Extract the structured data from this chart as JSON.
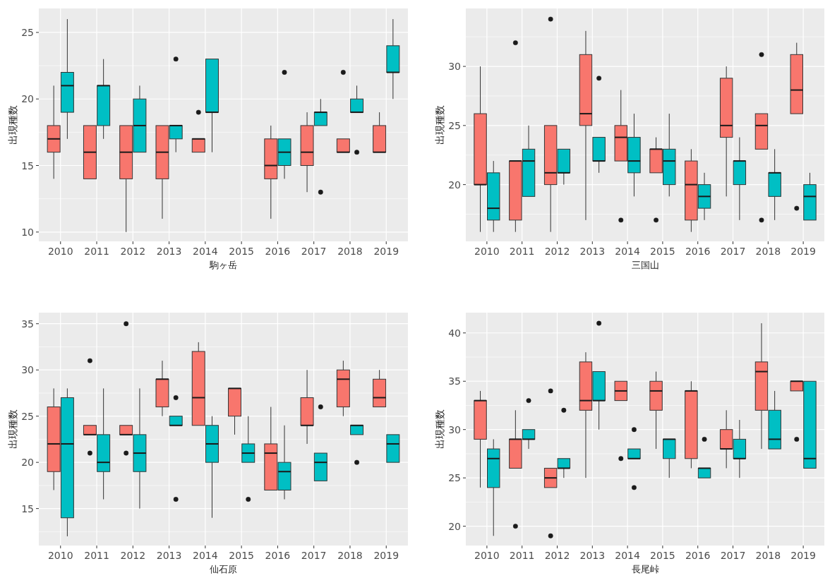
{
  "chart_data": [
    {
      "type": "box",
      "xlabel": "駒ヶ岳",
      "ylabel": "出現種数",
      "categories": [
        "2010",
        "2011",
        "2012",
        "2013",
        "2014",
        "2015",
        "2016",
        "2017",
        "2018",
        "2019"
      ],
      "ylim": [
        9.3,
        26.8
      ],
      "yticks": [
        10,
        15,
        20,
        25
      ],
      "grid": true,
      "series": [
        {
          "color": "#f8766d",
          "boxes": [
            {
              "low": 14,
              "q1": 16,
              "median": 17,
              "q3": 18,
              "high": 21
            },
            {
              "low": 14,
              "q1": 14,
              "median": 16,
              "q3": 18,
              "high": 18
            },
            {
              "low": 10,
              "q1": 14,
              "median": 16,
              "q3": 18,
              "high": 18
            },
            {
              "low": 11,
              "q1": 14,
              "median": 16,
              "q3": 18,
              "high": 18
            },
            {
              "low": 16,
              "q1": 16,
              "median": 17,
              "q3": 17,
              "high": 17,
              "outliers": [
                19
              ]
            },
            null,
            {
              "low": 11,
              "q1": 14,
              "median": 15,
              "q3": 17,
              "high": 18
            },
            {
              "low": 13,
              "q1": 15,
              "median": 16,
              "q3": 18,
              "high": 19
            },
            {
              "low": 16,
              "q1": 16,
              "median": 16,
              "q3": 17,
              "high": 17,
              "outliers": [
                22
              ]
            },
            {
              "low": 16,
              "q1": 16,
              "median": 16,
              "q3": 18,
              "high": 19
            }
          ]
        },
        {
          "color": "#00bfc4",
          "boxes": [
            {
              "low": 17,
              "q1": 19,
              "median": 21,
              "q3": 22,
              "high": 26
            },
            {
              "low": 17,
              "q1": 18,
              "median": 21,
              "q3": 21,
              "high": 23
            },
            {
              "low": 16,
              "q1": 16,
              "median": 18,
              "q3": 20,
              "high": 21
            },
            {
              "low": 16,
              "q1": 17,
              "median": 18,
              "q3": 18,
              "high": 18,
              "outliers": [
                23
              ]
            },
            {
              "low": 16,
              "q1": 19,
              "median": 19,
              "q3": 23,
              "high": 23
            },
            null,
            {
              "low": 14,
              "q1": 15,
              "median": 16,
              "q3": 17,
              "high": 17,
              "outliers": [
                22
              ]
            },
            {
              "low": 18,
              "q1": 18,
              "median": 19,
              "q3": 19,
              "high": 20,
              "outliers": [
                13
              ]
            },
            {
              "low": 19,
              "q1": 19,
              "median": 19,
              "q3": 20,
              "high": 21,
              "outliers": [
                16
              ]
            },
            {
              "low": 20,
              "q1": 22,
              "median": 22,
              "q3": 24,
              "high": 26
            }
          ]
        }
      ]
    },
    {
      "type": "box",
      "xlabel": "三国山",
      "ylabel": "出現種数",
      "categories": [
        "2010",
        "2011",
        "2012",
        "2013",
        "2014",
        "2015",
        "2016",
        "2017",
        "2018",
        "2019"
      ],
      "ylim": [
        15.2,
        34.9
      ],
      "yticks": [
        20,
        25,
        30
      ],
      "grid": true,
      "series": [
        {
          "color": "#f8766d",
          "boxes": [
            {
              "low": 16,
              "q1": 20,
              "median": 20,
              "q3": 26,
              "high": 30
            },
            {
              "low": 16,
              "q1": 17,
              "median": 22,
              "q3": 22,
              "high": 22,
              "outliers": [
                32
              ]
            },
            {
              "low": 16,
              "q1": 20,
              "median": 21,
              "q3": 25,
              "high": 25,
              "outliers": [
                34
              ]
            },
            {
              "low": 17,
              "q1": 25,
              "median": 26,
              "q3": 31,
              "high": 33
            },
            {
              "low": 22,
              "q1": 22,
              "median": 24,
              "q3": 25,
              "high": 28,
              "outliers": [
                17
              ]
            },
            {
              "low": 21,
              "q1": 21,
              "median": 23,
              "q3": 23,
              "high": 24,
              "outliers": [
                17
              ]
            },
            {
              "low": 16,
              "q1": 17,
              "median": 20,
              "q3": 22,
              "high": 23
            },
            {
              "low": 19,
              "q1": 24,
              "median": 25,
              "q3": 29,
              "high": 30
            },
            {
              "low": 23,
              "q1": 23,
              "median": 25,
              "q3": 26,
              "high": 26,
              "outliers": [
                31,
                17
              ]
            },
            {
              "low": 26,
              "q1": 26,
              "median": 28,
              "q3": 31,
              "high": 32,
              "outliers": [
                18
              ]
            }
          ]
        },
        {
          "color": "#00bfc4",
          "boxes": [
            {
              "low": 16,
              "q1": 17,
              "median": 18,
              "q3": 21,
              "high": 22
            },
            {
              "low": 19,
              "q1": 19,
              "median": 22,
              "q3": 23,
              "high": 25
            },
            {
              "low": 20,
              "q1": 21,
              "median": 21,
              "q3": 23,
              "high": 23
            },
            {
              "low": 21,
              "q1": 22,
              "median": 22,
              "q3": 24,
              "high": 24,
              "outliers": [
                29
              ]
            },
            {
              "low": 19,
              "q1": 21,
              "median": 22,
              "q3": 24,
              "high": 26
            },
            {
              "low": 19,
              "q1": 20,
              "median": 22,
              "q3": 23,
              "high": 26
            },
            {
              "low": 17,
              "q1": 18,
              "median": 19,
              "q3": 20,
              "high": 21
            },
            {
              "low": 17,
              "q1": 20,
              "median": 22,
              "q3": 22,
              "high": 24
            },
            {
              "low": 17,
              "q1": 19,
              "median": 21,
              "q3": 21,
              "high": 23
            },
            {
              "low": 17,
              "q1": 17,
              "median": 19,
              "q3": 20,
              "high": 21
            }
          ]
        }
      ]
    },
    {
      "type": "box",
      "xlabel": "仙石原",
      "ylabel": "出現種数",
      "categories": [
        "2010",
        "2011",
        "2012",
        "2013",
        "2014",
        "2015",
        "2016",
        "2017",
        "2018",
        "2019"
      ],
      "ylim": [
        11.0,
        36.2
      ],
      "yticks": [
        15,
        20,
        25,
        30,
        35
      ],
      "grid": true,
      "series": [
        {
          "color": "#f8766d",
          "boxes": [
            {
              "low": 17,
              "q1": 19,
              "median": 22,
              "q3": 26,
              "high": 28
            },
            {
              "low": 23,
              "q1": 23,
              "median": 23,
              "q3": 24,
              "high": 24,
              "outliers": [
                31,
                21
              ]
            },
            {
              "low": 23,
              "q1": 23,
              "median": 23,
              "q3": 24,
              "high": 24,
              "outliers": [
                35,
                21
              ]
            },
            {
              "low": 25,
              "q1": 26,
              "median": 29,
              "q3": 29,
              "high": 31
            },
            {
              "low": 24,
              "q1": 24,
              "median": 27,
              "q3": 32,
              "high": 33
            },
            {
              "low": 23,
              "q1": 25,
              "median": 28,
              "q3": 28,
              "high": 28
            },
            {
              "low": 17,
              "q1": 17,
              "median": 21,
              "q3": 22,
              "high": 26
            },
            {
              "low": 22,
              "q1": 24,
              "median": 24,
              "q3": 27,
              "high": 30
            },
            {
              "low": 25,
              "q1": 26,
              "median": 29,
              "q3": 30,
              "high": 31
            },
            {
              "low": 26,
              "q1": 26,
              "median": 27,
              "q3": 29,
              "high": 30
            }
          ]
        },
        {
          "color": "#00bfc4",
          "boxes": [
            {
              "low": 12,
              "q1": 14,
              "median": 22,
              "q3": 27,
              "high": 28
            },
            {
              "low": 16,
              "q1": 19,
              "median": 20,
              "q3": 23,
              "high": 28
            },
            {
              "low": 15,
              "q1": 19,
              "median": 21,
              "q3": 23,
              "high": 28
            },
            {
              "low": 24,
              "q1": 24,
              "median": 24,
              "q3": 25,
              "high": 25,
              "outliers": [
                27,
                16
              ]
            },
            {
              "low": 14,
              "q1": 20,
              "median": 22,
              "q3": 24,
              "high": 25
            },
            {
              "low": 20,
              "q1": 20,
              "median": 21,
              "q3": 22,
              "high": 25,
              "outliers": [
                16
              ]
            },
            {
              "low": 16,
              "q1": 17,
              "median": 19,
              "q3": 20,
              "high": 24
            },
            {
              "low": 18,
              "q1": 18,
              "median": 20,
              "q3": 21,
              "high": 21,
              "outliers": [
                26
              ]
            },
            {
              "low": 23,
              "q1": 23,
              "median": 24,
              "q3": 24,
              "high": 24,
              "outliers": [
                20
              ]
            },
            {
              "low": 20,
              "q1": 20,
              "median": 22,
              "q3": 23,
              "high": 23
            }
          ]
        }
      ]
    },
    {
      "type": "box",
      "xlabel": "長尾峠",
      "ylabel": "出現種数",
      "categories": [
        "2010",
        "2011",
        "2012",
        "2013",
        "2014",
        "2015",
        "2016",
        "2017",
        "2018",
        "2019"
      ],
      "ylim": [
        18.0,
        42.1
      ],
      "yticks": [
        20,
        25,
        30,
        35,
        40
      ],
      "grid": true,
      "series": [
        {
          "color": "#f8766d",
          "boxes": [
            {
              "low": 24,
              "q1": 29,
              "median": 33,
              "q3": 33,
              "high": 34
            },
            {
              "low": 26,
              "q1": 26,
              "median": 29,
              "q3": 29,
              "high": 32,
              "outliers": [
                20
              ]
            },
            {
              "low": 24,
              "q1": 24,
              "median": 25,
              "q3": 26,
              "high": 26,
              "outliers": [
                34,
                19
              ]
            },
            {
              "low": 25,
              "q1": 32,
              "median": 33,
              "q3": 37,
              "high": 38
            },
            {
              "low": 33,
              "q1": 33,
              "median": 34,
              "q3": 35,
              "high": 35,
              "outliers": [
                27
              ]
            },
            {
              "low": 28,
              "q1": 32,
              "median": 34,
              "q3": 35,
              "high": 36
            },
            {
              "low": 26,
              "q1": 27,
              "median": 34,
              "q3": 34,
              "high": 35
            },
            {
              "low": 26,
              "q1": 28,
              "median": 28,
              "q3": 30,
              "high": 32
            },
            {
              "low": 28,
              "q1": 32,
              "median": 36,
              "q3": 37,
              "high": 41
            },
            {
              "low": 34,
              "q1": 34,
              "median": 35,
              "q3": 35,
              "high": 35,
              "outliers": [
                29
              ]
            }
          ]
        },
        {
          "color": "#00bfc4",
          "boxes": [
            {
              "low": 19,
              "q1": 24,
              "median": 27,
              "q3": 28,
              "high": 29
            },
            {
              "low": 28,
              "q1": 29,
              "median": 29,
              "q3": 30,
              "high": 30,
              "outliers": [
                33
              ]
            },
            {
              "low": 25,
              "q1": 26,
              "median": 26,
              "q3": 27,
              "high": 27,
              "outliers": [
                32
              ]
            },
            {
              "low": 30,
              "q1": 33,
              "median": 33,
              "q3": 36,
              "high": 36,
              "outliers": [
                41
              ]
            },
            {
              "low": 27,
              "q1": 27,
              "median": 27,
              "q3": 28,
              "high": 28,
              "outliers": [
                30,
                24
              ]
            },
            {
              "low": 25,
              "q1": 27,
              "median": 29,
              "q3": 29,
              "high": 29
            },
            {
              "low": 25,
              "q1": 25,
              "median": 26,
              "q3": 26,
              "high": 26,
              "outliers": [
                29
              ]
            },
            {
              "low": 25,
              "q1": 27,
              "median": 27,
              "q3": 29,
              "high": 31
            },
            {
              "low": 28,
              "q1": 28,
              "median": 29,
              "q3": 32,
              "high": 34
            },
            {
              "low": 26,
              "q1": 26,
              "median": 27,
              "q3": 35,
              "high": 35
            }
          ]
        }
      ]
    }
  ]
}
